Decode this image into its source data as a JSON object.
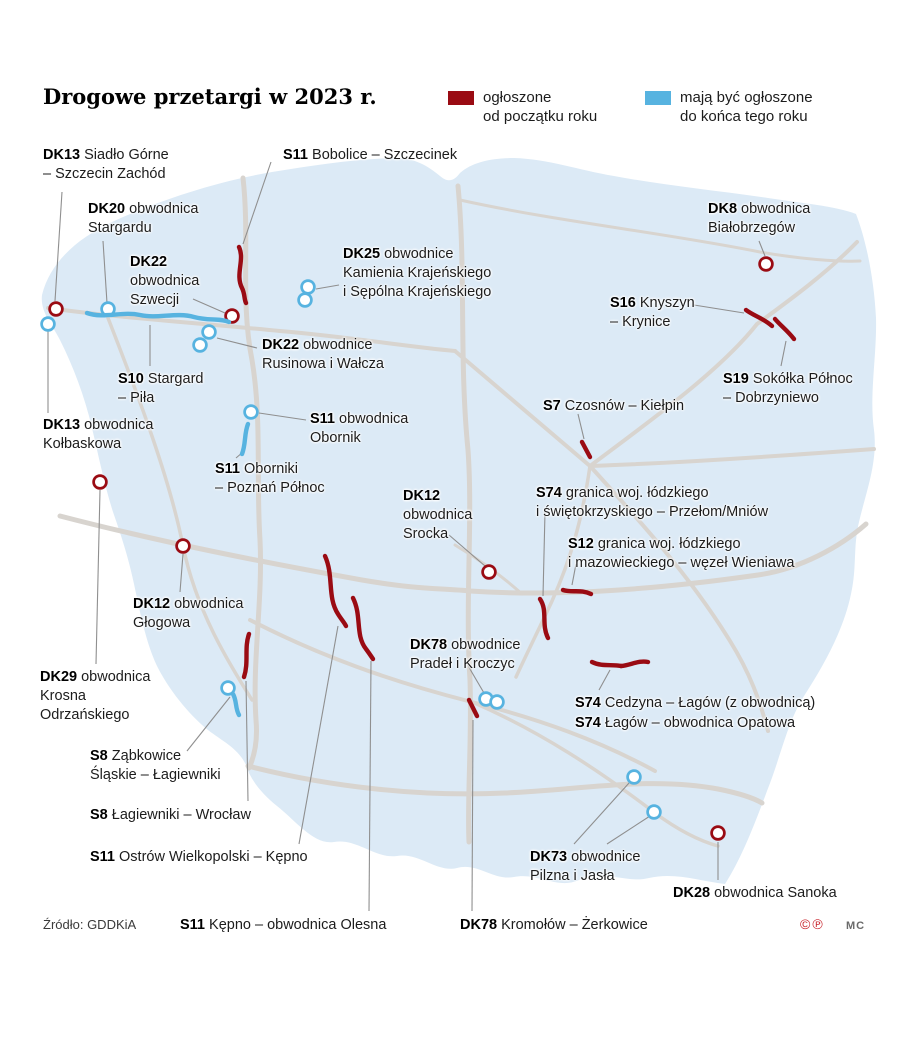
{
  "title": "Drogowe przetargi w 2023 r.",
  "legend": {
    "announced": {
      "line1": "ogłoszone",
      "line2": "od początku roku",
      "color": "#9a0b13"
    },
    "planned": {
      "line1": "mają być ogłoszone",
      "line2": "do końca tego roku",
      "color": "#57b3e0"
    }
  },
  "source": "Źródło: GDDKiA",
  "credits": {
    "copyright": "©",
    "phonogram": "℗",
    "initials": "MC"
  },
  "colors": {
    "announced": "#9a0b13",
    "planned": "#57b3e0",
    "map_fill": "#dceaf6",
    "road": "#d8d4cf",
    "leader": "#8f8f8f"
  },
  "projects": [
    {
      "id": "dk13_siadlo",
      "code": "DK13",
      "name_lines": [
        "Siadło Górne",
        "– Szczecin Zachód"
      ],
      "status": "announced"
    },
    {
      "id": "s11_bobolice",
      "code": "S11",
      "name_lines": [
        "Bobolice – Szczecinek"
      ],
      "status": "announced"
    },
    {
      "id": "dk20_stargard",
      "code": "DK20",
      "name_lines": [
        "obwodnica",
        "Stargardu"
      ],
      "status": "planned"
    },
    {
      "id": "dk8_bialobrzegi",
      "code": "DK8",
      "name_lines": [
        "obwodnica",
        "Białobrzegów"
      ],
      "status": "announced"
    },
    {
      "id": "dk22_szwecja",
      "code": "DK22",
      "name_lines": [
        "",
        "obwodnica",
        "Szwecji"
      ],
      "status": "announced"
    },
    {
      "id": "dk25_kamien",
      "code": "DK25",
      "name_lines": [
        "obwodnice",
        "Kamienia Krajeńskiego",
        "i Sępólna Krajeńskiego"
      ],
      "status": "planned"
    },
    {
      "id": "s16_knyszyn",
      "code": "S16",
      "name_lines": [
        "Knyszyn",
        "– Krynice"
      ],
      "status": "announced"
    },
    {
      "id": "dk22_rusinowo",
      "code": "DK22",
      "name_lines": [
        "obwodnice",
        "Rusinowa i Wałcza"
      ],
      "status": "planned"
    },
    {
      "id": "s19_sokolka",
      "code": "S19",
      "name_lines": [
        "Sokółka Północ",
        "– Dobrzyniewo"
      ],
      "status": "announced"
    },
    {
      "id": "s10_stargard_pila",
      "code": "S10",
      "name_lines": [
        "Stargard",
        "– Piła"
      ],
      "status": "planned"
    },
    {
      "id": "s7_czosnow",
      "code": "S7",
      "name_lines": [
        "Czosnów – Kiełpin"
      ],
      "status": "announced"
    },
    {
      "id": "dk13_kolbaskowo",
      "code": "DK13",
      "name_lines": [
        "obwodnica",
        "Kołbaskowa"
      ],
      "status": "planned"
    },
    {
      "id": "s11_obornik",
      "code": "S11",
      "name_lines": [
        "obwodnica",
        "Obornik"
      ],
      "status": "planned"
    },
    {
      "id": "s11_oborniki_poznan",
      "code": "S11",
      "name_lines": [
        "Oborniki",
        "– Poznań Północ"
      ],
      "status": "planned"
    },
    {
      "id": "dk12_srocka",
      "code": "DK12",
      "name_lines": [
        "",
        "obwodnica",
        "Srocka"
      ],
      "status": "announced"
    },
    {
      "id": "s74_przelom",
      "code": "S74",
      "name_lines": [
        "granica woj. łódzkiego",
        "i świętokrzyskiego – Przełom/Mniów"
      ],
      "status": "announced"
    },
    {
      "id": "s12_wieniawa",
      "code": "S12",
      "name_lines": [
        "granica woj. łódzkiego",
        "i mazowieckiego – węzeł Wieniawa"
      ],
      "status": "announced"
    },
    {
      "id": "dk12_glogow",
      "code": "DK12",
      "name_lines": [
        "obwodnica",
        "Głogowa"
      ],
      "status": "announced"
    },
    {
      "id": "dk78_pradel",
      "code": "DK78",
      "name_lines": [
        "obwodnice",
        "Pradeł i Kroczyc"
      ],
      "status": "planned"
    },
    {
      "id": "dk29_krosno",
      "code": "DK29",
      "name_lines": [
        "obwodnica",
        "Krosna",
        "Odrzańskiego"
      ],
      "status": "announced"
    },
    {
      "id": "s74_cedzyna",
      "code": "S74",
      "name_lines": [
        "Cedzyna – Łagów (z obwodnicą)"
      ],
      "status": "announced"
    },
    {
      "id": "s74_lagow_opatow",
      "code": "S74",
      "name_lines": [
        "Łagów – obwodnica Opatowa"
      ],
      "status": "announced"
    },
    {
      "id": "s8_zabkowice",
      "code": "S8",
      "name_lines": [
        "Ząbkowice",
        "Śląskie – Łagiewniki"
      ],
      "status": "planned"
    },
    {
      "id": "s8_lagiewniki",
      "code": "S8",
      "name_lines": [
        "Łagiewniki – Wrocław"
      ],
      "status": "announced"
    },
    {
      "id": "s11_ostrow",
      "code": "S11",
      "name_lines": [
        "Ostrów Wielkopolski – Kępno"
      ],
      "status": "announced"
    },
    {
      "id": "dk73_pilzno",
      "code": "DK73",
      "name_lines": [
        "obwodnice",
        "Pilzna i Jasła"
      ],
      "status": "planned"
    },
    {
      "id": "dk28_sanok",
      "code": "DK28",
      "name_lines": [
        "obwodnica Sanoka"
      ],
      "status": "announced"
    },
    {
      "id": "s11_kepno_olesno",
      "code": "S11",
      "name_lines": [
        "Kępno – obwodnica Olesna"
      ],
      "status": "announced"
    },
    {
      "id": "dk78_kromolow",
      "code": "DK78",
      "name_lines": [
        "Kromołów – Żerkowice"
      ],
      "status": "announced"
    }
  ]
}
